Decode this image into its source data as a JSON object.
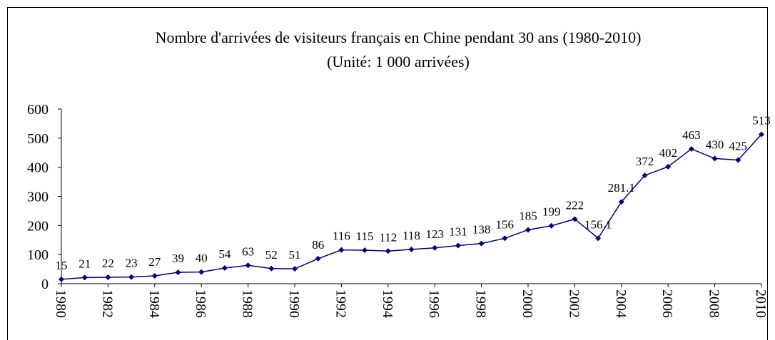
{
  "chart_data": {
    "type": "line",
    "title": "Nombre d'arrivées de visiteurs français en Chine pendant 30 ans (1980-2010)",
    "subtitle": "(Unité: 1 000 arrivées)",
    "x": [
      1980,
      1981,
      1982,
      1983,
      1984,
      1985,
      1986,
      1987,
      1988,
      1989,
      1990,
      1991,
      1992,
      1993,
      1994,
      1995,
      1996,
      1997,
      1998,
      1999,
      2000,
      2001,
      2002,
      2003,
      2004,
      2005,
      2006,
      2007,
      2008,
      2009,
      2010
    ],
    "series": [
      {
        "name": "Arrivées",
        "color": "#000080",
        "values": [
          15,
          21,
          22,
          23,
          27,
          39,
          40,
          54,
          63,
          52,
          51,
          86,
          116,
          115,
          112,
          118,
          123,
          131,
          138,
          156,
          185,
          199,
          222,
          156.1,
          281.1,
          372,
          402,
          463,
          430,
          425,
          513
        ]
      }
    ],
    "xlim": [
      1980,
      2010
    ],
    "xticks": [
      1980,
      1982,
      1984,
      1986,
      1988,
      1990,
      1992,
      1994,
      1996,
      1998,
      2000,
      2002,
      2004,
      2006,
      2008,
      2010
    ],
    "ylim": [
      0,
      600
    ],
    "yticks": [
      0,
      100,
      200,
      300,
      400,
      500,
      600
    ],
    "grid": false
  }
}
